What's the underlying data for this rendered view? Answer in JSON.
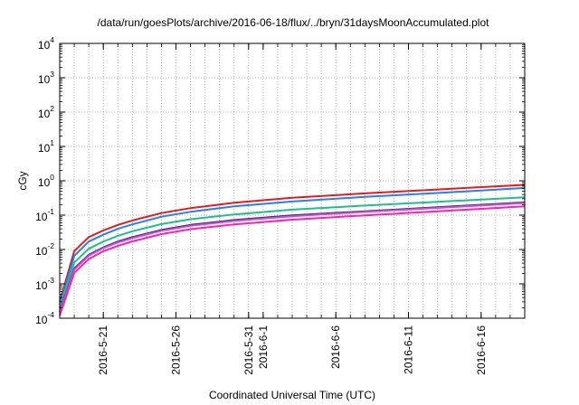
{
  "chart_data": {
    "type": "line",
    "title": "/data/run/goesPlots/archive/2016-06-18/flux/../bryn/31daysMoonAccumulated.plot",
    "xlabel": "Coordinated Universal Time (UTC)",
    "ylabel": "cGy",
    "x_start": "2016-05-18",
    "x_end": "2016-06-19",
    "xlim": [
      "2016-05-18",
      "2016-06-19"
    ],
    "ylim": [
      0.0001,
      10000
    ],
    "y_scale": "log",
    "grid": true,
    "legend": "none",
    "x_ticks": [
      {
        "date": "2016-05-21",
        "label": "2016-5-21"
      },
      {
        "date": "2016-05-26",
        "label": "2016-5-26"
      },
      {
        "date": "2016-05-31",
        "label": "2016-5-31"
      },
      {
        "date": "2016-06-01",
        "label": "2016-6-1"
      },
      {
        "date": "2016-06-06",
        "label": "2016-6-6"
      },
      {
        "date": "2016-06-11",
        "label": "2016-6-11"
      },
      {
        "date": "2016-06-16",
        "label": "2016-6-16"
      }
    ],
    "y_ticks": [
      {
        "value": 0.0001,
        "base": "10",
        "exp": "-4"
      },
      {
        "value": 0.001,
        "base": "10",
        "exp": "-3"
      },
      {
        "value": 0.01,
        "base": "10",
        "exp": "-2"
      },
      {
        "value": 0.1,
        "base": "10",
        "exp": "-1"
      },
      {
        "value": 1,
        "base": "10",
        "exp": "0"
      },
      {
        "value": 10,
        "base": "10",
        "exp": "1"
      },
      {
        "value": 100,
        "base": "10",
        "exp": "2"
      },
      {
        "value": 1000,
        "base": "10",
        "exp": "3"
      },
      {
        "value": 10000,
        "base": "10",
        "exp": "4"
      }
    ],
    "x": [
      "2016-05-18",
      "2016-05-19",
      "2016-05-20",
      "2016-05-21",
      "2016-05-22",
      "2016-05-23",
      "2016-05-25",
      "2016-05-27",
      "2016-05-30",
      "2016-06-03",
      "2016-06-08",
      "2016-06-13",
      "2016-06-19"
    ],
    "series": [
      {
        "color": "#e41a1c",
        "values": [
          0.0003,
          0.009,
          0.023,
          0.036,
          0.052,
          0.07,
          0.115,
          0.16,
          0.23,
          0.32,
          0.43,
          0.56,
          0.76
        ]
      },
      {
        "color": "#2a7df0",
        "values": [
          0.00025,
          0.0065,
          0.017,
          0.027,
          0.04,
          0.054,
          0.09,
          0.125,
          0.18,
          0.25,
          0.34,
          0.44,
          0.62
        ]
      },
      {
        "color": "#1fbf8a",
        "values": [
          0.0002,
          0.0042,
          0.0105,
          0.017,
          0.025,
          0.034,
          0.055,
          0.076,
          0.105,
          0.145,
          0.19,
          0.245,
          0.33
        ]
      },
      {
        "color": "#3a2a6a",
        "values": [
          0.00015,
          0.0028,
          0.007,
          0.0115,
          0.017,
          0.023,
          0.037,
          0.052,
          0.072,
          0.098,
          0.13,
          0.17,
          0.235
        ]
      },
      {
        "color": "#c84fd8",
        "values": [
          0.00014,
          0.0026,
          0.0066,
          0.011,
          0.016,
          0.0215,
          0.035,
          0.049,
          0.068,
          0.093,
          0.124,
          0.162,
          0.225
        ]
      },
      {
        "color": "#ff1fb8",
        "values": [
          0.00012,
          0.0021,
          0.0053,
          0.0089,
          0.0128,
          0.0172,
          0.028,
          0.039,
          0.054,
          0.074,
          0.099,
          0.13,
          0.18
        ]
      }
    ]
  }
}
